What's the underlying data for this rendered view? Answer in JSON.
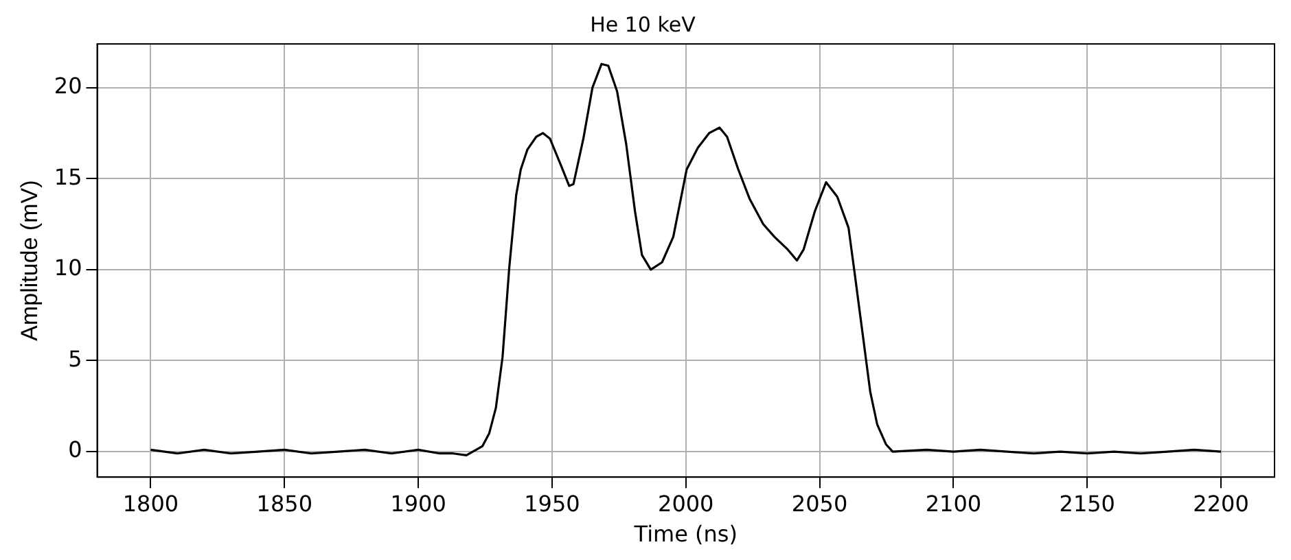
{
  "chart_data": {
    "type": "line",
    "title": "He 10 keV",
    "xlabel": "Time (ns)",
    "ylabel": "Amplitude (mV)",
    "xlim": [
      1780,
      2220
    ],
    "xticks": [
      1800,
      1850,
      1900,
      1950,
      2000,
      2050,
      2100,
      2150,
      2200
    ],
    "ylim": [
      -1.4,
      22.4
    ],
    "yticks": [
      0,
      5,
      10,
      15,
      20
    ],
    "grid": true,
    "legend": false,
    "marker": "none",
    "line_style": "solid",
    "series": [
      {
        "color": "#000000",
        "x": [
          1800,
          1810,
          1820,
          1830,
          1840,
          1850,
          1860,
          1870,
          1880,
          1890,
          1900,
          1908,
          1913,
          1918,
          1924,
          1926.5,
          1929,
          1931.5,
          1934,
          1936.6,
          1938.3,
          1940.8,
          1944.1,
          1946.6,
          1949.2,
          1953.4,
          1956.4,
          1958,
          1961.7,
          1965.1,
          1968.5,
          1971,
          1974.3,
          1977.7,
          1981,
          1983.6,
          1986.9,
          1991.1,
          1995.3,
          2000.3,
          2004.5,
          2008.7,
          2012.6,
          2015.4,
          2019.6,
          2023.8,
          2028.9,
          2033.1,
          2038.1,
          2041.5,
          2044,
          2048.2,
          2052.4,
          2056.6,
          2060.8,
          2063,
          2066.4,
          2068.9,
          2071.5,
          2074.8,
          2077.3,
          2090,
          2100,
          2110,
          2120,
          2130,
          2140,
          2150,
          2160,
          2170,
          2180,
          2190,
          2200
        ],
        "values": [
          0.1,
          -0.1,
          0.1,
          -0.1,
          0.0,
          0.1,
          -0.1,
          0.0,
          0.1,
          -0.1,
          0.1,
          -0.1,
          -0.1,
          -0.2,
          0.3,
          1.0,
          2.4,
          5.2,
          10.1,
          14.1,
          15.5,
          16.6,
          17.3,
          17.5,
          17.2,
          15.7,
          14.6,
          14.7,
          17.2,
          20.0,
          21.3,
          21.2,
          19.8,
          16.9,
          13.2,
          10.8,
          10.0,
          10.4,
          11.8,
          15.5,
          16.7,
          17.5,
          17.8,
          17.3,
          15.5,
          13.9,
          12.5,
          11.8,
          11.1,
          10.5,
          11.1,
          13.2,
          14.8,
          14.0,
          12.3,
          9.9,
          6.1,
          3.3,
          1.5,
          0.4,
          0.0,
          0.1,
          0.0,
          0.1,
          0.0,
          -0.1,
          0.0,
          -0.1,
          0.0,
          -0.1,
          0.0,
          0.1,
          0.0
        ]
      }
    ]
  }
}
